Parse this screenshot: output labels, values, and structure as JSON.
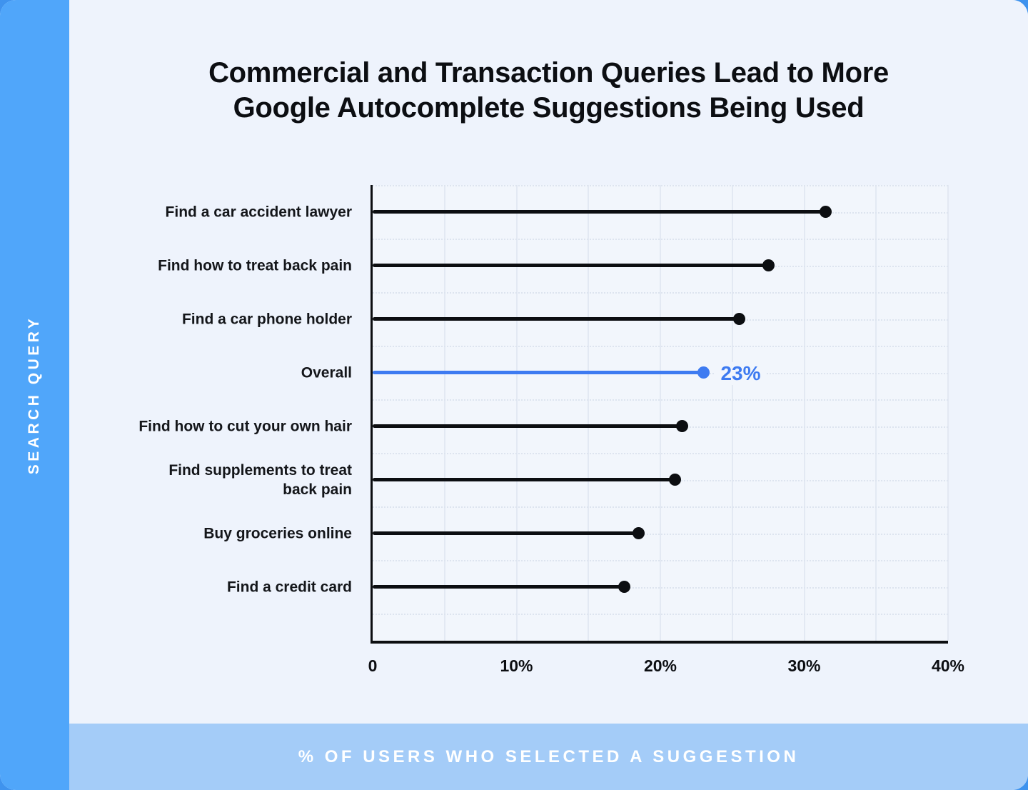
{
  "header": {
    "title_line1": "Commercial and Transaction Queries Lead to More",
    "title_line2": "Google Autocomplete Suggestions Being Used"
  },
  "sidebar": {
    "label": "SEARCH QUERY"
  },
  "footer": {
    "label": "% OF USERS WHO SELECTED A SUGGESTION"
  },
  "colors": {
    "rail_blue": "#50a6fa",
    "footer_blue": "#a4ccf8",
    "card_background": "#eef3fc",
    "plot_background": "#f2f6fc",
    "gridline": "#e3e9f3",
    "grid_dotted": "#dde4ef",
    "series_black": "#0c0e11",
    "accent_blue": "#3e7bf1",
    "title_text": "#0c0e12",
    "page_behind": "#3f93ee"
  },
  "chart_data": {
    "type": "bar",
    "subtype": "horizontal-lollipop",
    "title": "Commercial and Transaction Queries Lead to More Google Autocomplete Suggestions Being Used",
    "xlabel": "% OF USERS WHO SELECTED A SUGGESTION",
    "ylabel": "SEARCH QUERY",
    "categories": [
      "Find a car accident lawyer",
      "Find how to treat back pain",
      "Find a car phone holder",
      "Overall",
      "Find how to cut your own hair",
      "Find supplements to treat\nback pain",
      "Buy groceries online",
      "Find a credit card"
    ],
    "values": [
      31.5,
      27.5,
      25.5,
      23,
      21.5,
      21,
      18.5,
      17.5
    ],
    "highlight": {
      "category": "Overall",
      "index": 3,
      "label": "23%"
    },
    "xlim": [
      0,
      40
    ],
    "x_ticks": [
      {
        "label": "0",
        "value": 0
      },
      {
        "label": "10%",
        "value": 10
      },
      {
        "label": "20%",
        "value": 20
      },
      {
        "label": "30%",
        "value": 30
      },
      {
        "label": "40%",
        "value": 40
      }
    ],
    "grid": {
      "vertical_step_percent": 5,
      "horizontal_guides": "dotted every half row",
      "legend": false
    },
    "colors": {
      "bar": "#0c0e11",
      "highlight": "#3e7bf1"
    }
  }
}
